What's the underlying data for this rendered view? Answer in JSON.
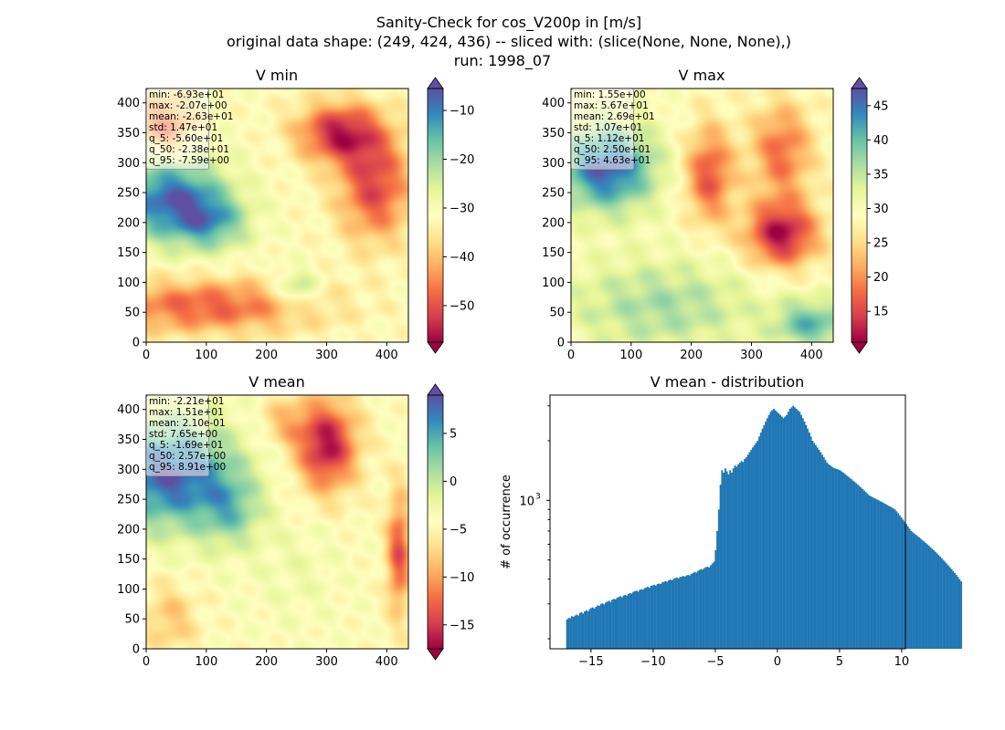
{
  "suptitle": {
    "line1": "Sanity-Check for cos_V200p in [m/s]",
    "line2": "original data shape: (249, 424, 436) -- sliced with: (slice(None, None, None),)",
    "line3": "run: 1998_07"
  },
  "colormap": [
    "#9e0142",
    "#d53e4f",
    "#f46d43",
    "#fdae61",
    "#fee08b",
    "#ffffbf",
    "#e6f598",
    "#abdda4",
    "#66c2a5",
    "#3288bd",
    "#5e4fa2"
  ],
  "chart_data": [
    {
      "type": "heatmap",
      "title": "V min",
      "xlim": [
        0,
        436
      ],
      "ylim": [
        0,
        424
      ],
      "xticks": [
        0,
        100,
        200,
        300,
        400
      ],
      "yticks": [
        0,
        50,
        100,
        150,
        200,
        250,
        300,
        350,
        400
      ],
      "colorbar": {
        "vmin": -57.5,
        "vmax": -5.5,
        "ticks": [
          -50,
          -40,
          -30,
          -20,
          -10
        ]
      },
      "stats": [
        "min: -6.93e+01",
        "max: -2.07e+00",
        "mean: -2.63e+01",
        "std: 1.47e+01",
        "q_5: -5.60e+01",
        "q_50: -2.38e+01",
        "q_95: -7.59e+00"
      ],
      "blobs": [
        {
          "x": 40,
          "y": 240,
          "rx": 90,
          "ry": 70,
          "a": -0.9
        },
        {
          "x": 110,
          "y": 200,
          "rx": 60,
          "ry": 45,
          "a": -0.5
        },
        {
          "x": 250,
          "y": 90,
          "rx": 35,
          "ry": 30,
          "a": -0.45
        },
        {
          "x": 320,
          "y": 350,
          "rx": 70,
          "ry": 50,
          "a": 0.85
        },
        {
          "x": 380,
          "y": 260,
          "rx": 60,
          "ry": 90,
          "a": 0.75
        },
        {
          "x": 100,
          "y": 60,
          "rx": 180,
          "ry": 45,
          "a": 0.65
        },
        {
          "x": 30,
          "y": 360,
          "rx": 50,
          "ry": 50,
          "a": 0.6
        }
      ]
    },
    {
      "type": "heatmap",
      "title": "V max",
      "xlim": [
        0,
        436
      ],
      "ylim": [
        0,
        424
      ],
      "xticks": [
        0,
        100,
        200,
        300,
        400
      ],
      "yticks": [
        0,
        50,
        100,
        150,
        200,
        250,
        300,
        350,
        400
      ],
      "colorbar": {
        "vmin": 10.5,
        "vmax": 47.5,
        "ticks": [
          15,
          20,
          25,
          30,
          35,
          40,
          45
        ]
      },
      "stats": [
        "min: 1.55e+00",
        "max: 5.67e+01",
        "mean: 2.69e+01",
        "std: 1.07e+01",
        "q_5: 1.12e+01",
        "q_50: 2.50e+01",
        "q_95: 4.63e+01"
      ],
      "blobs": [
        {
          "x": 60,
          "y": 290,
          "rx": 80,
          "ry": 70,
          "a": -0.95
        },
        {
          "x": 350,
          "y": 180,
          "rx": 60,
          "ry": 55,
          "a": 0.95
        },
        {
          "x": 230,
          "y": 280,
          "rx": 40,
          "ry": 80,
          "a": 0.7
        },
        {
          "x": 350,
          "y": 320,
          "rx": 50,
          "ry": 80,
          "a": 0.6
        },
        {
          "x": 150,
          "y": 60,
          "rx": 160,
          "ry": 80,
          "a": -0.4
        },
        {
          "x": 400,
          "y": 30,
          "rx": 60,
          "ry": 40,
          "a": -0.6
        }
      ]
    },
    {
      "type": "heatmap",
      "title": "V mean",
      "xlim": [
        0,
        436
      ],
      "ylim": [
        0,
        424
      ],
      "xticks": [
        0,
        100,
        200,
        300,
        400
      ],
      "yticks": [
        0,
        50,
        100,
        150,
        200,
        250,
        300,
        350,
        400
      ],
      "colorbar": {
        "vmin": -17.5,
        "vmax": 9.0,
        "ticks": [
          -15,
          -10,
          -5,
          0,
          5
        ]
      },
      "stats": [
        "min: -2.21e+01",
        "max: 1.51e+01",
        "mean: 2.10e-01",
        "std: 7.65e+00",
        "q_5: -1.69e+01",
        "q_50: 2.57e+00",
        "q_95: 8.91e+00"
      ],
      "blobs": [
        {
          "x": 40,
          "y": 290,
          "rx": 110,
          "ry": 90,
          "a": -0.95
        },
        {
          "x": 140,
          "y": 230,
          "rx": 50,
          "ry": 60,
          "a": -0.4
        },
        {
          "x": 300,
          "y": 340,
          "rx": 50,
          "ry": 75,
          "a": 0.95
        },
        {
          "x": 230,
          "y": 380,
          "rx": 40,
          "ry": 40,
          "a": 0.3
        },
        {
          "x": 420,
          "y": 160,
          "rx": 20,
          "ry": 100,
          "a": 0.7
        },
        {
          "x": 40,
          "y": 50,
          "rx": 45,
          "ry": 60,
          "a": 0.3
        },
        {
          "x": 250,
          "y": 130,
          "rx": 70,
          "ry": 90,
          "a": -0.1
        }
      ]
    },
    {
      "type": "histogram",
      "title": "V mean - distribution",
      "xlabel": "",
      "ylabel": "# of occurrence",
      "yscale": "log",
      "xlim": [
        -18.3,
        10.3
      ],
      "ylim": [
        178,
        3400
      ],
      "xticks": [
        -15,
        -10,
        -5,
        0,
        5,
        10
      ],
      "yticks": [
        {
          "value": 1000,
          "label": "10",
          "exp": "3"
        }
      ],
      "bin_start": -17.0,
      "bin_width": 0.13,
      "color": "#1f77b4",
      "counts": [
        250,
        255,
        254,
        260,
        258,
        262,
        265,
        262,
        270,
        272,
        268,
        275,
        279,
        275,
        282,
        286,
        288,
        284,
        290,
        295,
        293,
        300,
        302,
        298,
        305,
        308,
        311,
        307,
        315,
        318,
        316,
        322,
        325,
        328,
        324,
        330,
        333,
        330,
        337,
        340,
        338,
        345,
        348,
        350,
        346,
        353,
        356,
        354,
        360,
        363,
        366,
        362,
        370,
        372,
        375,
        371,
        378,
        380,
        378,
        385,
        388,
        391,
        388,
        395,
        398,
        395,
        402,
        405,
        408,
        404,
        410,
        412,
        415,
        412,
        418,
        420,
        418,
        425,
        430,
        435,
        432,
        440,
        445,
        450,
        447,
        455,
        460,
        462,
        458,
        470,
        480,
        490,
        560,
        700,
        900,
        1200,
        1420,
        1380,
        1450,
        1400,
        1350,
        1420,
        1380,
        1450,
        1500,
        1480,
        1520,
        1550,
        1580,
        1560,
        1620,
        1650,
        1700,
        1750,
        1800,
        1850,
        1900,
        1950,
        2000,
        2100,
        2200,
        2300,
        2400,
        2500,
        2600,
        2700,
        2800,
        2850,
        2900,
        2850,
        2800,
        2750,
        2700,
        2650,
        2600,
        2650,
        2700,
        2800,
        2900,
        2950,
        3000,
        2950,
        2900,
        2850,
        2800,
        2700,
        2600,
        2500,
        2400,
        2300,
        2200,
        2100,
        2000,
        1950,
        1900,
        1850,
        1800,
        1750,
        1700,
        1650,
        1600,
        1550,
        1520,
        1500,
        1480,
        1460,
        1450,
        1440,
        1430,
        1420,
        1400,
        1380,
        1360,
        1340,
        1320,
        1300,
        1280,
        1260,
        1240,
        1220,
        1200,
        1180,
        1160,
        1140,
        1120,
        1100,
        1080,
        1060,
        1050,
        1040,
        1030,
        1020,
        1010,
        1000,
        990,
        980,
        970,
        960,
        950,
        940,
        930,
        920,
        910,
        900,
        880,
        860,
        840,
        820,
        800,
        780,
        760,
        740,
        720,
        700,
        690,
        680,
        670,
        660,
        650,
        640,
        630,
        620,
        610,
        600,
        590,
        580,
        570,
        560,
        550,
        540,
        530,
        520,
        510,
        500,
        490,
        480,
        470,
        460,
        450,
        440,
        430,
        420,
        410,
        400,
        390
      ]
    }
  ]
}
